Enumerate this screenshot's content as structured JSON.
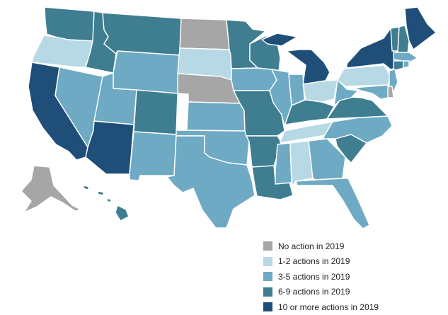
{
  "categories": [
    {
      "key": "none",
      "label": "No action in 2019",
      "color": "#A6A6A6"
    },
    {
      "key": "c1",
      "label": "1-2 actions in 2019",
      "color": "#B7D9E5"
    },
    {
      "key": "c3",
      "label": "3-5 actions in 2019",
      "color": "#6FAAC4"
    },
    {
      "key": "c6",
      "label": "6-9 actions in 2019",
      "color": "#3F7E90"
    },
    {
      "key": "c10",
      "label": "10 or more actions in 2019",
      "color": "#1F4E79"
    }
  ],
  "states": {
    "WA": "c6",
    "OR": "c1",
    "CA": "c10",
    "NV": "c3",
    "ID": "c6",
    "MT": "c6",
    "WY": "c3",
    "UT": "c3",
    "AZ": "c10",
    "CO": "c6",
    "NM": "c3",
    "ND": "none",
    "SD": "c1",
    "NE": "none",
    "KS": "c3",
    "OK": "c3",
    "TX": "c3",
    "MN": "c6",
    "IA": "c3",
    "MO": "c6",
    "AR": "c6",
    "LA": "c6",
    "WI": "c6",
    "IL": "c3",
    "MI": "c10",
    "IN": "c3",
    "OH": "c1",
    "KY": "c6",
    "TN": "c1",
    "MS": "c3",
    "AL": "c1",
    "GA": "c3",
    "FL": "c3",
    "SC": "c6",
    "NC": "c3",
    "VA": "c6",
    "WV": "c3",
    "PA": "c1",
    "NY": "c10",
    "ME": "c10",
    "VT": "c6",
    "NH": "c6",
    "MA": "c3",
    "CT": "c6",
    "RI": "c3",
    "NJ": "c3",
    "DE": "none",
    "MD": "c3",
    "AK": "none",
    "HI": "c6"
  }
}
